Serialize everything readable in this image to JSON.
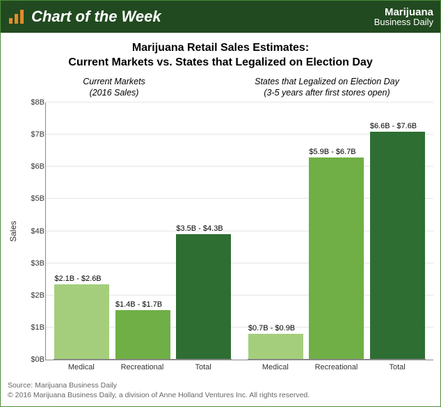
{
  "header": {
    "feature_title": "Chart of the Week",
    "brand_line1": "Marijuana",
    "brand_line2": "Business Daily"
  },
  "title_line1": "Marijuana Retail Sales Estimates:",
  "title_line2": "Current Markets vs. States that Legalized on Election Day",
  "groups": [
    {
      "label_line1": "Current Markets",
      "label_line2": "(2016 Sales)"
    },
    {
      "label_line1": "States that Legalized on Election Day",
      "label_line2": "(3-5 years after first stores open)"
    }
  ],
  "chart": {
    "type": "bar",
    "y_label": "Sales",
    "ymax": 8,
    "y_ticks": [
      "$0B",
      "$1B",
      "$2B",
      "$3B",
      "$4B",
      "$5B",
      "$6B",
      "$7B",
      "$8B"
    ],
    "colors": {
      "medical": "#a4ce7c",
      "recreational": "#6faf46",
      "total": "#2e6e33",
      "grid": "#e6e6e6",
      "axis": "#888888"
    },
    "categories": [
      "Medical",
      "Recreational",
      "Total"
    ],
    "series": [
      {
        "group": 0,
        "bars": [
          {
            "cat": "Medical",
            "value": 2.35,
            "label": "$2.1B - $2.6B",
            "color": "#a4ce7c"
          },
          {
            "cat": "Recreational",
            "value": 1.55,
            "label": "$1.4B - $1.7B",
            "color": "#6faf46"
          },
          {
            "cat": "Total",
            "value": 3.9,
            "label": "$3.5B - $4.3B",
            "color": "#2e6e33"
          }
        ]
      },
      {
        "group": 1,
        "bars": [
          {
            "cat": "Medical",
            "value": 0.8,
            "label": "$0.7B - $0.9B",
            "color": "#a4ce7c"
          },
          {
            "cat": "Recreational",
            "value": 6.3,
            "label": "$5.9B - $6.7B",
            "color": "#6faf46"
          },
          {
            "cat": "Total",
            "value": 7.1,
            "label": "$6.6B - $7.6B",
            "color": "#2e6e33"
          }
        ]
      }
    ]
  },
  "footer": {
    "source": "Source: Marijuana Business Daily",
    "copyright": "© 2016 Marijuana Business Daily, a division of Anne Holland Ventures Inc. All rights reserved."
  }
}
